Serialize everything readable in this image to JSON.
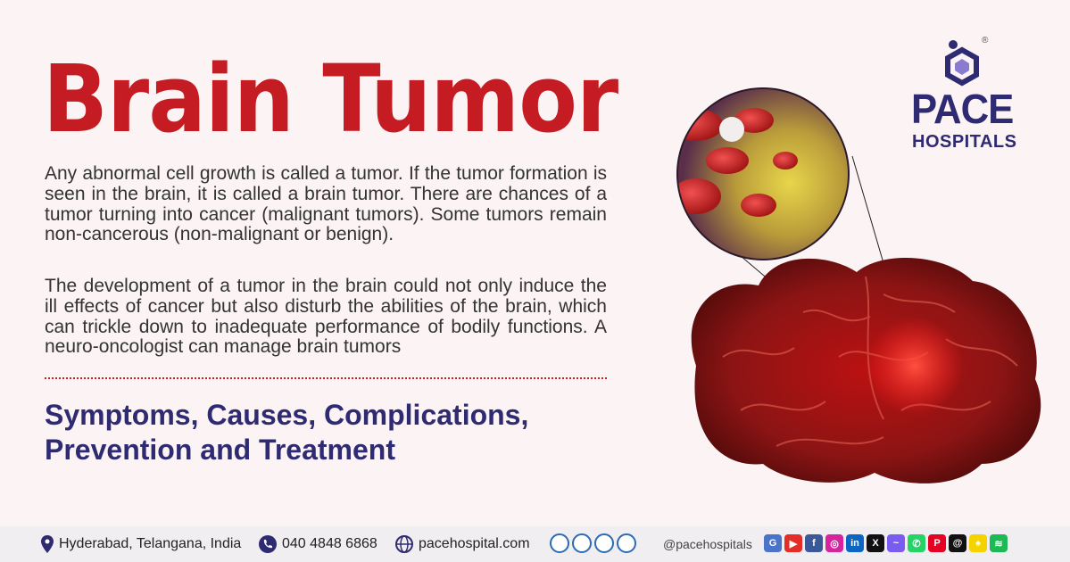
{
  "header": {
    "title": "Brain Tumor"
  },
  "content": {
    "para1": "Any abnormal cell growth is called a tumor. If the tumor formation is seen in the brain, it is called a brain tumor. There are chances of a tumor turning into cancer (malignant tumors). Some tumors remain non-cancerous (non-malignant or benign).",
    "para2": "The development of a tumor in the brain could not only induce the ill effects of cancer but also disturb the abilities of the brain, which can trickle down to inadequate performance of bodily functions. A neuro-oncologist can manage brain tumors",
    "subtitle_line1": "Symptoms, Causes, Complications,",
    "subtitle_line2": "Prevention and Treatment"
  },
  "logo": {
    "name": "PACE",
    "sub": "HOSPITALS",
    "reg": "®"
  },
  "footer": {
    "location": "Hyderabad, Telangana, India",
    "phone": "040 4848 6868",
    "website": "pacehospital.com",
    "handle": "@pacehospitals"
  },
  "colors": {
    "title": "#c41c22",
    "brand": "#2f2b72",
    "background": "#fbf3f4"
  },
  "socials": [
    {
      "name": "google-business-icon",
      "color": "#4a73c9",
      "glyph": "G"
    },
    {
      "name": "youtube-icon",
      "color": "#e52d27",
      "glyph": "▶"
    },
    {
      "name": "facebook-icon",
      "color": "#3b5998",
      "glyph": "f"
    },
    {
      "name": "instagram-icon",
      "color": "#d6249f",
      "glyph": "◎"
    },
    {
      "name": "linkedin-icon",
      "color": "#0a66c2",
      "glyph": "in"
    },
    {
      "name": "x-icon",
      "color": "#111111",
      "glyph": "X"
    },
    {
      "name": "messenger-icon",
      "color": "#7b5cf0",
      "glyph": "~"
    },
    {
      "name": "whatsapp-icon",
      "color": "#25d366",
      "glyph": "✆"
    },
    {
      "name": "pinterest-icon",
      "color": "#e60023",
      "glyph": "P"
    },
    {
      "name": "threads-icon",
      "color": "#111111",
      "glyph": "@"
    },
    {
      "name": "snapchat-icon",
      "color": "#f5d300",
      "glyph": "♠"
    },
    {
      "name": "spotify-icon",
      "color": "#1db954",
      "glyph": "≋"
    }
  ]
}
